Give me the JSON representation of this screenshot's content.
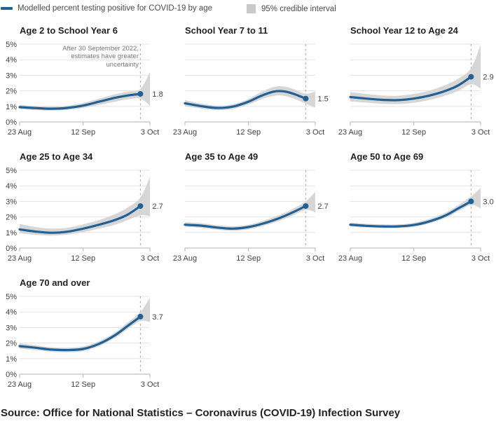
{
  "legend": {
    "line_label": "Modelled percent testing positive for COVID-19 by age",
    "band_label": "95% credible interval"
  },
  "annotation": "After 30 September 2022,\nestimates have greater\nuncertainty",
  "source": "Source: Office for National Statistics – Coronavirus (COVID-19) Infection Survey",
  "colors": {
    "line": "#206095",
    "band": "#d6d6d6",
    "grid": "#e3e3e3",
    "axis": "#b0b0b0",
    "dashed": "#a8a8a8",
    "title": "#222222",
    "tick_label": "#414042",
    "value_label": "#414042",
    "annotation_text": "#767676"
  },
  "chart_data": {
    "type": "line",
    "title": "Modelled percent testing positive for COVID-19 by age",
    "unit": "%",
    "x_ticks": [
      "23 Aug",
      "12 Sep",
      "3 Oct"
    ],
    "x_tick_days": [
      0,
      20,
      41
    ],
    "x_range_days": [
      0,
      41
    ],
    "y_ticks": [
      "0%",
      "1%",
      "2%",
      "3%",
      "4%",
      "5%"
    ],
    "ylim": [
      0,
      5
    ],
    "dashed_line_day": 38,
    "panels": [
      {
        "title": "Age 2 to School Year 6",
        "end_label": "1.8",
        "show_y_labels": true,
        "line": [
          [
            0,
            0.95
          ],
          [
            5,
            0.89
          ],
          [
            10,
            0.85
          ],
          [
            15,
            0.9
          ],
          [
            20,
            1.05
          ],
          [
            25,
            1.3
          ],
          [
            30,
            1.55
          ],
          [
            34,
            1.7
          ],
          [
            38,
            1.8
          ]
        ],
        "band": [
          [
            0,
            0.82,
            1.1
          ],
          [
            5,
            0.76,
            1.02
          ],
          [
            10,
            0.73,
            0.98
          ],
          [
            15,
            0.77,
            1.04
          ],
          [
            20,
            0.9,
            1.22
          ],
          [
            25,
            1.1,
            1.5
          ],
          [
            30,
            1.3,
            1.78
          ],
          [
            34,
            1.45,
            1.95
          ],
          [
            38,
            1.5,
            2.12
          ],
          [
            41,
            1.05,
            3.2
          ]
        ]
      },
      {
        "title": "School Year 7 to 11",
        "end_label": "1.5",
        "show_y_labels": false,
        "line": [
          [
            0,
            1.2
          ],
          [
            5,
            1.02
          ],
          [
            10,
            0.9
          ],
          [
            15,
            0.98
          ],
          [
            20,
            1.3
          ],
          [
            24,
            1.68
          ],
          [
            28,
            1.95
          ],
          [
            31,
            1.97
          ],
          [
            34,
            1.82
          ],
          [
            38,
            1.5
          ]
        ],
        "band": [
          [
            0,
            1.0,
            1.4
          ],
          [
            5,
            0.86,
            1.18
          ],
          [
            10,
            0.76,
            1.05
          ],
          [
            15,
            0.83,
            1.13
          ],
          [
            20,
            1.12,
            1.48
          ],
          [
            24,
            1.45,
            1.92
          ],
          [
            28,
            1.68,
            2.25
          ],
          [
            31,
            1.68,
            2.28
          ],
          [
            34,
            1.52,
            2.12
          ],
          [
            38,
            1.18,
            1.82
          ],
          [
            41,
            0.92,
            1.95
          ]
        ]
      },
      {
        "title": "School Year 12 to Age 24",
        "end_label": "2.9",
        "show_y_labels": false,
        "line": [
          [
            0,
            1.6
          ],
          [
            5,
            1.5
          ],
          [
            10,
            1.42
          ],
          [
            15,
            1.4
          ],
          [
            20,
            1.5
          ],
          [
            25,
            1.7
          ],
          [
            30,
            2.0
          ],
          [
            34,
            2.35
          ],
          [
            38,
            2.9
          ]
        ],
        "band": [
          [
            0,
            1.32,
            1.92
          ],
          [
            5,
            1.24,
            1.8
          ],
          [
            10,
            1.17,
            1.7
          ],
          [
            15,
            1.15,
            1.68
          ],
          [
            20,
            1.23,
            1.8
          ],
          [
            25,
            1.42,
            2.02
          ],
          [
            30,
            1.7,
            2.38
          ],
          [
            34,
            2.0,
            2.78
          ],
          [
            38,
            2.42,
            3.45
          ],
          [
            41,
            2.15,
            4.95
          ]
        ]
      },
      {
        "title": "Age 25 to Age 34",
        "end_label": "2.7",
        "show_y_labels": true,
        "line": [
          [
            0,
            1.2
          ],
          [
            5,
            1.06
          ],
          [
            10,
            0.98
          ],
          [
            15,
            1.05
          ],
          [
            20,
            1.25
          ],
          [
            25,
            1.5
          ],
          [
            30,
            1.8
          ],
          [
            34,
            2.15
          ],
          [
            38,
            2.7
          ]
        ],
        "band": [
          [
            0,
            0.95,
            1.55
          ],
          [
            5,
            0.85,
            1.35
          ],
          [
            10,
            0.8,
            1.25
          ],
          [
            15,
            0.86,
            1.3
          ],
          [
            20,
            1.02,
            1.52
          ],
          [
            25,
            1.25,
            1.8
          ],
          [
            30,
            1.5,
            2.18
          ],
          [
            34,
            1.8,
            2.6
          ],
          [
            38,
            2.1,
            3.25
          ],
          [
            41,
            2.05,
            4.55
          ]
        ]
      },
      {
        "title": "Age 35 to Age 49",
        "end_label": "2.7",
        "show_y_labels": false,
        "line": [
          [
            0,
            1.5
          ],
          [
            5,
            1.44
          ],
          [
            10,
            1.32
          ],
          [
            15,
            1.25
          ],
          [
            20,
            1.35
          ],
          [
            25,
            1.6
          ],
          [
            30,
            1.95
          ],
          [
            34,
            2.3
          ],
          [
            38,
            2.7
          ]
        ],
        "band": [
          [
            0,
            1.36,
            1.66
          ],
          [
            5,
            1.3,
            1.6
          ],
          [
            10,
            1.18,
            1.47
          ],
          [
            15,
            1.11,
            1.4
          ],
          [
            20,
            1.2,
            1.5
          ],
          [
            25,
            1.44,
            1.78
          ],
          [
            30,
            1.77,
            2.15
          ],
          [
            34,
            2.1,
            2.52
          ],
          [
            38,
            2.45,
            3.0
          ],
          [
            41,
            2.3,
            3.6
          ]
        ]
      },
      {
        "title": "Age 50 to Age 69",
        "end_label": "3.0",
        "show_y_labels": false,
        "line": [
          [
            0,
            1.5
          ],
          [
            5,
            1.43
          ],
          [
            10,
            1.39
          ],
          [
            15,
            1.39
          ],
          [
            20,
            1.48
          ],
          [
            25,
            1.72
          ],
          [
            30,
            2.1
          ],
          [
            34,
            2.55
          ],
          [
            38,
            3.0
          ]
        ],
        "band": [
          [
            0,
            1.38,
            1.64
          ],
          [
            5,
            1.31,
            1.56
          ],
          [
            10,
            1.28,
            1.52
          ],
          [
            15,
            1.28,
            1.52
          ],
          [
            20,
            1.36,
            1.62
          ],
          [
            25,
            1.59,
            1.88
          ],
          [
            30,
            1.95,
            2.28
          ],
          [
            34,
            2.37,
            2.76
          ],
          [
            38,
            2.76,
            3.32
          ],
          [
            41,
            2.55,
            3.85
          ]
        ]
      },
      {
        "title": "Age 70 and over",
        "end_label": "3.7",
        "show_y_labels": true,
        "line": [
          [
            0,
            1.8
          ],
          [
            5,
            1.7
          ],
          [
            10,
            1.58
          ],
          [
            15,
            1.55
          ],
          [
            20,
            1.62
          ],
          [
            25,
            1.95
          ],
          [
            30,
            2.5
          ],
          [
            34,
            3.1
          ],
          [
            38,
            3.7
          ]
        ],
        "band": [
          [
            0,
            1.64,
            1.98
          ],
          [
            5,
            1.55,
            1.86
          ],
          [
            10,
            1.44,
            1.73
          ],
          [
            15,
            1.41,
            1.7
          ],
          [
            20,
            1.48,
            1.78
          ],
          [
            25,
            1.8,
            2.12
          ],
          [
            30,
            2.34,
            2.68
          ],
          [
            34,
            2.9,
            3.32
          ],
          [
            38,
            3.42,
            4.0
          ],
          [
            41,
            3.35,
            4.9
          ]
        ]
      }
    ]
  }
}
